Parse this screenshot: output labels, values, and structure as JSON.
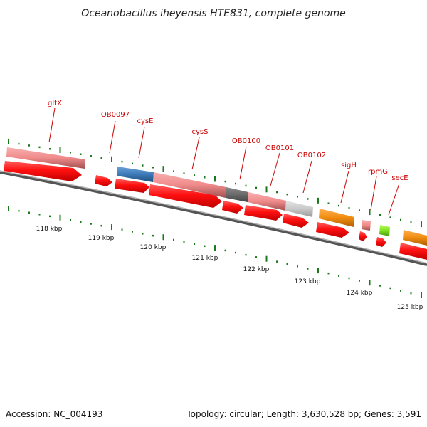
{
  "title": "Oceanobacillus iheyensis HTE831, complete genome",
  "footer": {
    "accession": "Accession: NC_004193",
    "topology": "Topology: circular; Length: 3,630,528 bp; Genes: 3,591"
  },
  "kbp_ticks": [
    "118 kbp",
    "119 kbp",
    "120 kbp",
    "121 kbp",
    "122 kbp",
    "123 kbp",
    "124 kbp",
    "125 kbp"
  ],
  "gene_labels": [
    "gltX",
    "OB0097",
    "cysE",
    "cysS",
    "OB0100",
    "OB0101",
    "OB0102",
    "sigH",
    "rpmG",
    "secE"
  ],
  "colors": {
    "cds_arrow": "#ff1010",
    "gene_pink": "#f08a8a",
    "gene_blue": "#3d7ab8",
    "gene_darkgray": "#6a6a6a",
    "gene_lightgray": "#c8c8c8",
    "gene_orange": "#f08c10",
    "gene_lime": "#7fe020",
    "tick_green": "#1a7a1a",
    "backbone": "#808080",
    "label_red": "#cc0000"
  }
}
